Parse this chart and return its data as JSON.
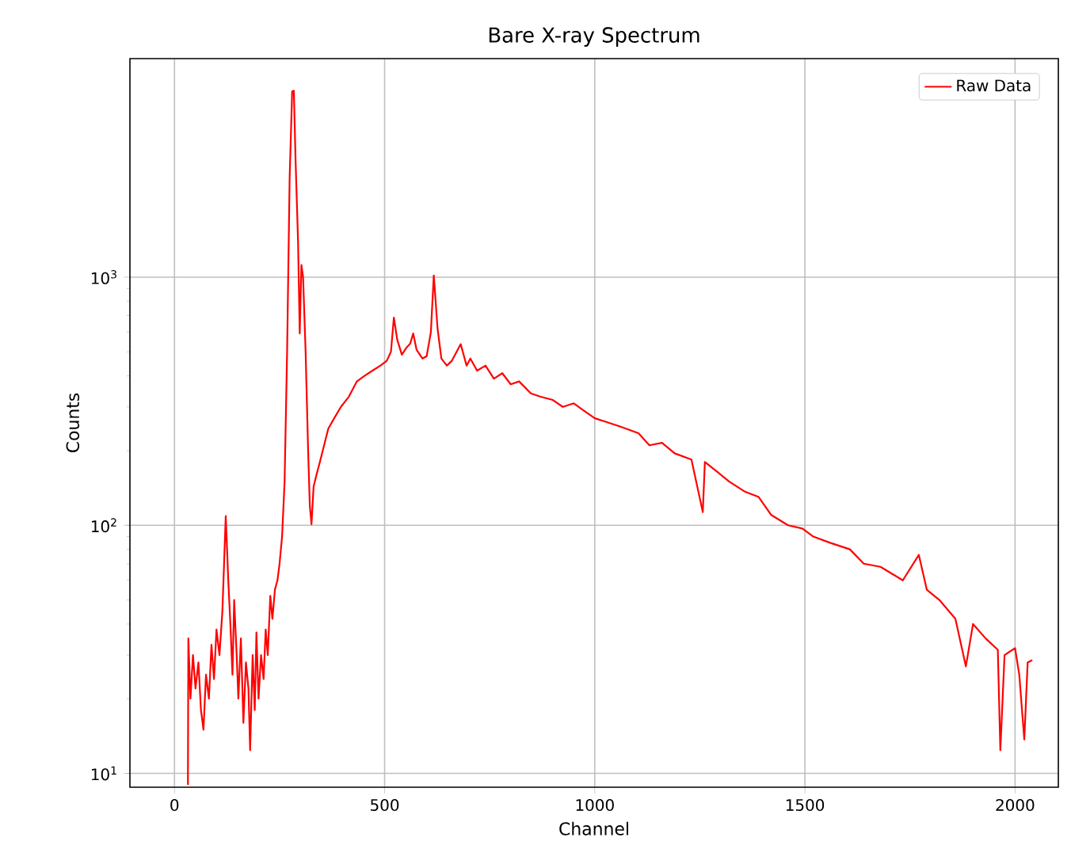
{
  "chart_data": {
    "type": "line",
    "title": "Bare X-ray Spectrum",
    "xlabel": "Channel",
    "ylabel": "Counts",
    "log": "y",
    "grid": true,
    "legend": "top right",
    "line_style": "solid",
    "marker": "none",
    "xlim": [
      -106,
      2103
    ],
    "ylim": [
      8.8,
      7600
    ],
    "xticks": [
      0,
      500,
      1000,
      1500,
      2000
    ],
    "yticks": [
      {
        "value": 10,
        "label": "10$^{1}$"
      },
      {
        "value": 100,
        "label": "10$^{2}$"
      },
      {
        "value": 1000,
        "label": "10$^{3}$"
      }
    ],
    "series": [
      {
        "name": "Raw Data",
        "color": "#ff0000",
        "x": [
          32,
          33,
          38,
          44,
          50,
          57,
          63,
          69,
          75,
          82,
          88,
          94,
          100,
          107,
          114,
          122,
          128,
          133,
          138,
          142,
          148,
          152,
          158,
          164,
          170,
          176,
          180,
          186,
          191,
          195,
          200,
          206,
          212,
          217,
          222,
          228,
          233,
          239,
          245,
          250,
          256,
          262,
          268,
          274,
          280,
          284,
          288,
          294,
          298,
          302,
          306,
          312,
          318,
          322,
          326,
          331,
          338,
          346,
          356,
          366,
          380,
          396,
          415,
          434,
          452,
          471,
          490,
          505,
          515,
          522,
          530,
          541,
          552,
          561,
          568,
          576,
          590,
          600,
          610,
          617,
          626,
          635,
          648,
          660,
          681,
          695,
          704,
          720,
          740,
          760,
          780,
          800,
          820,
          848,
          870,
          900,
          924,
          950,
          979,
          1000,
          1030,
          1060,
          1104,
          1130,
          1160,
          1190,
          1230,
          1257,
          1262,
          1290,
          1320,
          1356,
          1390,
          1420,
          1460,
          1494,
          1520,
          1560,
          1607,
          1640,
          1680,
          1733,
          1771,
          1790,
          1820,
          1858,
          1883,
          1900,
          1930,
          1959,
          1965,
          1975,
          2000,
          2010,
          2022,
          2030,
          2041
        ],
        "values": [
          9,
          35,
          20,
          30,
          22,
          28,
          18,
          15,
          25,
          20,
          33,
          24,
          38,
          30,
          45,
          109,
          60,
          40,
          25,
          50,
          30,
          20,
          35,
          16,
          28,
          22,
          12.4,
          30,
          18,
          37,
          20,
          30,
          24,
          38,
          30,
          52,
          42,
          55,
          60,
          70,
          90,
          150,
          500,
          2500,
          5600,
          5640,
          3000,
          1400,
          593,
          1120,
          1000,
          500,
          200,
          120,
          101,
          143,
          160,
          180,
          210,
          245,
          270,
          300,
          330,
          380,
          400,
          420,
          440,
          460,
          500,
          687,
          560,
          487,
          520,
          540,
          593,
          510,
          470,
          480,
          600,
          1015,
          620,
          470,
          440,
          460,
          537,
          440,
          470,
          420,
          440,
          390,
          410,
          370,
          380,
          340,
          330,
          320,
          300,
          310,
          286,
          270,
          260,
          250,
          235,
          210,
          215,
          195,
          184,
          113,
          180,
          165,
          150,
          137,
          130,
          110,
          100,
          97,
          90,
          85,
          80,
          70,
          68,
          60,
          76,
          55,
          50,
          42,
          27,
          40,
          35,
          31.5,
          12.4,
          30,
          32,
          25,
          13.7,
          28,
          28.6
        ]
      }
    ]
  }
}
